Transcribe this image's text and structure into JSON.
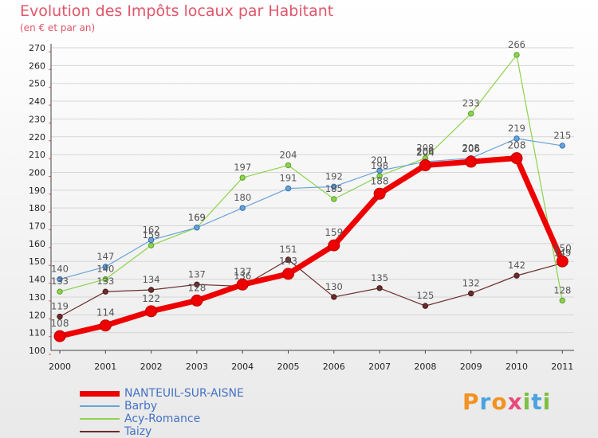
{
  "page": {
    "title": "Evolution des Impôts locaux par Habitant",
    "subtitle": "(en € et par an)",
    "logo": {
      "text": "Proxiti",
      "letters": [
        {
          "ch": "P",
          "color": "#f29222"
        },
        {
          "ch": "r",
          "color": "#4aa3df"
        },
        {
          "ch": "o",
          "color": "#f29222"
        },
        {
          "ch": "x",
          "color": "#e94b7b"
        },
        {
          "ch": "i",
          "color": "#7cbf42"
        },
        {
          "ch": "t",
          "color": "#4aa3df"
        },
        {
          "ch": "i",
          "color": "#7cbf42"
        }
      ]
    }
  },
  "chart_data": {
    "type": "line",
    "title": "Evolution des Impôts locaux par Habitant",
    "subtitle": "(en € et par an)",
    "xlabel": "",
    "ylabel": "",
    "x": [
      "2000",
      "2001",
      "2002",
      "2003",
      "2004",
      "2005",
      "2006",
      "2007",
      "2008",
      "2009",
      "2010",
      "2011"
    ],
    "ylim": [
      100,
      270
    ],
    "yticks": [
      100,
      110,
      120,
      130,
      140,
      150,
      160,
      170,
      180,
      190,
      200,
      210,
      220,
      230,
      240,
      250,
      260,
      270
    ],
    "grid": "horizontal",
    "legend_position": "bottom-left",
    "series": [
      {
        "name": "Taizy",
        "color": "#6b2c2c",
        "values": [
          119,
          133,
          134,
          137,
          136,
          151,
          130,
          135,
          125,
          132,
          142,
          149
        ]
      },
      {
        "name": "Acy-Romance",
        "color": "#8dd34c",
        "values": [
          133,
          140,
          159,
          169,
          197,
          204,
          185,
          198,
          208,
          233,
          266,
          128
        ]
      },
      {
        "name": "Barby",
        "color": "#6aa3d8",
        "values": [
          140,
          147,
          162,
          169,
          180,
          191,
          192,
          201,
          206,
          208,
          219,
          215
        ]
      },
      {
        "name": "NANTEUIL-SUR-AISNE",
        "color": "#ee0000",
        "values": [
          108,
          114,
          122,
          128,
          137,
          143,
          159,
          188,
          204,
          206,
          208,
          150
        ]
      }
    ],
    "legend_order": [
      "NANTEUIL-SUR-AISNE",
      "Barby",
      "Acy-Romance",
      "Taizy"
    ]
  }
}
